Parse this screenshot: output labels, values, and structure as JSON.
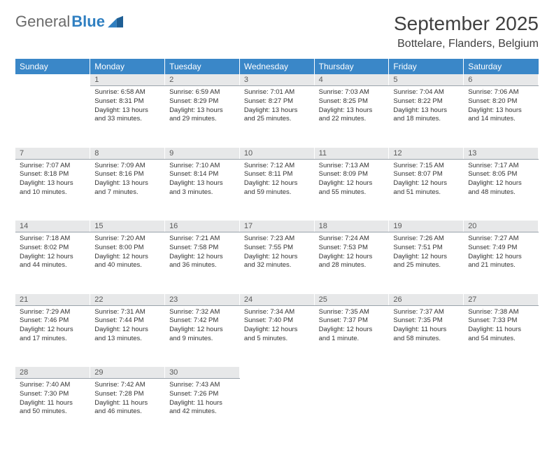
{
  "logo": {
    "text1": "General",
    "text2": "Blue"
  },
  "header": {
    "month": "September 2025",
    "location": "Bottelare, Flanders, Belgium"
  },
  "colors": {
    "header_bg": "#3a87c8",
    "daynum_bg": "#e7e8e9",
    "daynum_border": "#9aa3ab",
    "text": "#333333",
    "title": "#404040",
    "logo_gray": "#6b6b6b",
    "logo_blue": "#2f7fc1"
  },
  "dayHeaders": [
    "Sunday",
    "Monday",
    "Tuesday",
    "Wednesday",
    "Thursday",
    "Friday",
    "Saturday"
  ],
  "weeks": [
    {
      "nums": [
        "",
        "1",
        "2",
        "3",
        "4",
        "5",
        "6"
      ],
      "cells": [
        null,
        {
          "sr": "Sunrise: 6:58 AM",
          "ss": "Sunset: 8:31 PM",
          "dl": "Daylight: 13 hours and 33 minutes."
        },
        {
          "sr": "Sunrise: 6:59 AM",
          "ss": "Sunset: 8:29 PM",
          "dl": "Daylight: 13 hours and 29 minutes."
        },
        {
          "sr": "Sunrise: 7:01 AM",
          "ss": "Sunset: 8:27 PM",
          "dl": "Daylight: 13 hours and 25 minutes."
        },
        {
          "sr": "Sunrise: 7:03 AM",
          "ss": "Sunset: 8:25 PM",
          "dl": "Daylight: 13 hours and 22 minutes."
        },
        {
          "sr": "Sunrise: 7:04 AM",
          "ss": "Sunset: 8:22 PM",
          "dl": "Daylight: 13 hours and 18 minutes."
        },
        {
          "sr": "Sunrise: 7:06 AM",
          "ss": "Sunset: 8:20 PM",
          "dl": "Daylight: 13 hours and 14 minutes."
        }
      ]
    },
    {
      "nums": [
        "7",
        "8",
        "9",
        "10",
        "11",
        "12",
        "13"
      ],
      "cells": [
        {
          "sr": "Sunrise: 7:07 AM",
          "ss": "Sunset: 8:18 PM",
          "dl": "Daylight: 13 hours and 10 minutes."
        },
        {
          "sr": "Sunrise: 7:09 AM",
          "ss": "Sunset: 8:16 PM",
          "dl": "Daylight: 13 hours and 7 minutes."
        },
        {
          "sr": "Sunrise: 7:10 AM",
          "ss": "Sunset: 8:14 PM",
          "dl": "Daylight: 13 hours and 3 minutes."
        },
        {
          "sr": "Sunrise: 7:12 AM",
          "ss": "Sunset: 8:11 PM",
          "dl": "Daylight: 12 hours and 59 minutes."
        },
        {
          "sr": "Sunrise: 7:13 AM",
          "ss": "Sunset: 8:09 PM",
          "dl": "Daylight: 12 hours and 55 minutes."
        },
        {
          "sr": "Sunrise: 7:15 AM",
          "ss": "Sunset: 8:07 PM",
          "dl": "Daylight: 12 hours and 51 minutes."
        },
        {
          "sr": "Sunrise: 7:17 AM",
          "ss": "Sunset: 8:05 PM",
          "dl": "Daylight: 12 hours and 48 minutes."
        }
      ]
    },
    {
      "nums": [
        "14",
        "15",
        "16",
        "17",
        "18",
        "19",
        "20"
      ],
      "cells": [
        {
          "sr": "Sunrise: 7:18 AM",
          "ss": "Sunset: 8:02 PM",
          "dl": "Daylight: 12 hours and 44 minutes."
        },
        {
          "sr": "Sunrise: 7:20 AM",
          "ss": "Sunset: 8:00 PM",
          "dl": "Daylight: 12 hours and 40 minutes."
        },
        {
          "sr": "Sunrise: 7:21 AM",
          "ss": "Sunset: 7:58 PM",
          "dl": "Daylight: 12 hours and 36 minutes."
        },
        {
          "sr": "Sunrise: 7:23 AM",
          "ss": "Sunset: 7:55 PM",
          "dl": "Daylight: 12 hours and 32 minutes."
        },
        {
          "sr": "Sunrise: 7:24 AM",
          "ss": "Sunset: 7:53 PM",
          "dl": "Daylight: 12 hours and 28 minutes."
        },
        {
          "sr": "Sunrise: 7:26 AM",
          "ss": "Sunset: 7:51 PM",
          "dl": "Daylight: 12 hours and 25 minutes."
        },
        {
          "sr": "Sunrise: 7:27 AM",
          "ss": "Sunset: 7:49 PM",
          "dl": "Daylight: 12 hours and 21 minutes."
        }
      ]
    },
    {
      "nums": [
        "21",
        "22",
        "23",
        "24",
        "25",
        "26",
        "27"
      ],
      "cells": [
        {
          "sr": "Sunrise: 7:29 AM",
          "ss": "Sunset: 7:46 PM",
          "dl": "Daylight: 12 hours and 17 minutes."
        },
        {
          "sr": "Sunrise: 7:31 AM",
          "ss": "Sunset: 7:44 PM",
          "dl": "Daylight: 12 hours and 13 minutes."
        },
        {
          "sr": "Sunrise: 7:32 AM",
          "ss": "Sunset: 7:42 PM",
          "dl": "Daylight: 12 hours and 9 minutes."
        },
        {
          "sr": "Sunrise: 7:34 AM",
          "ss": "Sunset: 7:40 PM",
          "dl": "Daylight: 12 hours and 5 minutes."
        },
        {
          "sr": "Sunrise: 7:35 AM",
          "ss": "Sunset: 7:37 PM",
          "dl": "Daylight: 12 hours and 1 minute."
        },
        {
          "sr": "Sunrise: 7:37 AM",
          "ss": "Sunset: 7:35 PM",
          "dl": "Daylight: 11 hours and 58 minutes."
        },
        {
          "sr": "Sunrise: 7:38 AM",
          "ss": "Sunset: 7:33 PM",
          "dl": "Daylight: 11 hours and 54 minutes."
        }
      ]
    },
    {
      "nums": [
        "28",
        "29",
        "30",
        "",
        "",
        "",
        ""
      ],
      "cells": [
        {
          "sr": "Sunrise: 7:40 AM",
          "ss": "Sunset: 7:30 PM",
          "dl": "Daylight: 11 hours and 50 minutes."
        },
        {
          "sr": "Sunrise: 7:42 AM",
          "ss": "Sunset: 7:28 PM",
          "dl": "Daylight: 11 hours and 46 minutes."
        },
        {
          "sr": "Sunrise: 7:43 AM",
          "ss": "Sunset: 7:26 PM",
          "dl": "Daylight: 11 hours and 42 minutes."
        },
        null,
        null,
        null,
        null
      ]
    }
  ]
}
